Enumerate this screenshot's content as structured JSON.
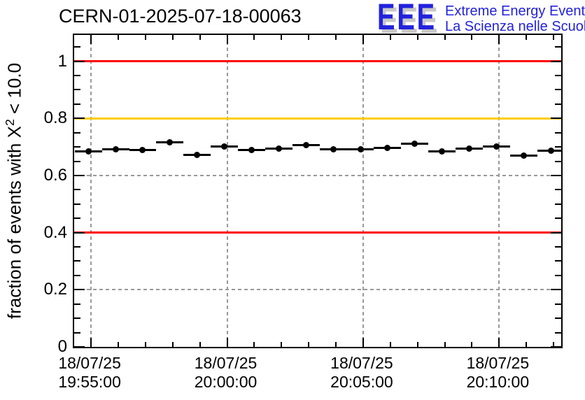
{
  "header": {
    "title": "CERN-01-2025-07-18-00063",
    "logo": {
      "acronym": "EEE",
      "line1": "Extreme Energy Events",
      "line2": "La Scienza nelle Scuole",
      "color": "#2222dd",
      "shadow_color": "#c8c8c8"
    }
  },
  "chart_data": {
    "type": "scatter",
    "title": "CERN-01-2025-07-18-00063",
    "ylabel": "fraction of events with X² < 10.0",
    "ylabel_parts": {
      "pre": "fraction of events with X",
      "sup": "2",
      "post": " < 10.0"
    },
    "xlabel": "",
    "grid": true,
    "grid_color": "#999999",
    "ylim": [
      0,
      1.092
    ],
    "xlim_minutes_rel_1955": [
      -0.62,
      17.28
    ],
    "y_major_ticks": [
      {
        "v": 0,
        "label": "0"
      },
      {
        "v": 0.2,
        "label": "0.2"
      },
      {
        "v": 0.4,
        "label": "0.4"
      },
      {
        "v": 0.6,
        "label": "0.6"
      },
      {
        "v": 0.8,
        "label": "0.8"
      },
      {
        "v": 1,
        "label": "1"
      }
    ],
    "y_minor_step": 0.05,
    "x_major_ticks": [
      {
        "t": 0,
        "date": "18/07/25",
        "time": "19:55:00"
      },
      {
        "t": 5,
        "date": "18/07/25",
        "time": "20:00:00"
      },
      {
        "t": 10,
        "date": "18/07/25",
        "time": "20:05:00"
      },
      {
        "t": 15,
        "date": "18/07/25",
        "time": "20:10:00"
      }
    ],
    "x_minor_step_minutes": 1,
    "reference_lines": [
      {
        "value": 1.0,
        "color": "#ff0000"
      },
      {
        "value": 0.8,
        "color": "#ffcc00"
      },
      {
        "value": 0.4,
        "color": "#ff0000"
      }
    ],
    "series": [
      {
        "name": "fraction of events with chi2 < 10.0 per 1-min bin",
        "marker": "filled-circle",
        "color": "#000000",
        "x_error_minutes": 0.5,
        "points": [
          {
            "t": -0.1,
            "value": 0.685
          },
          {
            "t": 0.9,
            "value": 0.692
          },
          {
            "t": 1.9,
            "value": 0.689
          },
          {
            "t": 2.9,
            "value": 0.715
          },
          {
            "t": 3.9,
            "value": 0.673
          },
          {
            "t": 4.9,
            "value": 0.702
          },
          {
            "t": 5.9,
            "value": 0.69
          },
          {
            "t": 6.9,
            "value": 0.695
          },
          {
            "t": 7.9,
            "value": 0.707
          },
          {
            "t": 8.9,
            "value": 0.692
          },
          {
            "t": 9.9,
            "value": 0.692
          },
          {
            "t": 10.9,
            "value": 0.697
          },
          {
            "t": 11.9,
            "value": 0.712
          },
          {
            "t": 12.9,
            "value": 0.685
          },
          {
            "t": 13.9,
            "value": 0.693
          },
          {
            "t": 14.9,
            "value": 0.701
          },
          {
            "t": 15.9,
            "value": 0.67
          },
          {
            "t": 16.9,
            "value": 0.687
          }
        ]
      }
    ]
  }
}
